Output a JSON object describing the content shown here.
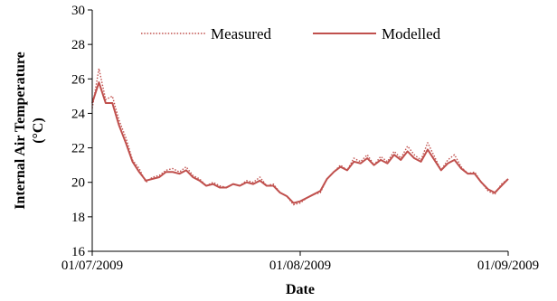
{
  "chart_data": {
    "type": "line",
    "title": "",
    "xlabel": "Date",
    "ylabel": "Internal Air Temperature",
    "ylabel_unit": "(°C)",
    "ylim": [
      16,
      30
    ],
    "yticks": [
      16,
      18,
      20,
      22,
      24,
      26,
      28,
      30
    ],
    "x_range": [
      "01/07/2009",
      "01/09/2009"
    ],
    "xticks": [
      "01/07/2009",
      "01/08/2009",
      "01/09/2009"
    ],
    "grid": false,
    "legend_position": "top",
    "series": [
      {
        "name": "Measured",
        "style": "dotted",
        "color": "#C0504D",
        "points": [
          [
            "01/07/2009",
            24.3
          ],
          [
            "02/07/2009",
            26.6
          ],
          [
            "03/07/2009",
            24.8
          ],
          [
            "04/07/2009",
            25.0
          ],
          [
            "05/07/2009",
            23.6
          ],
          [
            "06/07/2009",
            22.6
          ],
          [
            "07/07/2009",
            21.3
          ],
          [
            "08/07/2009",
            20.8
          ],
          [
            "09/07/2009",
            20.0
          ],
          [
            "10/07/2009",
            20.3
          ],
          [
            "11/07/2009",
            20.4
          ],
          [
            "12/07/2009",
            20.7
          ],
          [
            "13/07/2009",
            20.8
          ],
          [
            "14/07/2009",
            20.6
          ],
          [
            "15/07/2009",
            20.9
          ],
          [
            "16/07/2009",
            20.4
          ],
          [
            "17/07/2009",
            20.2
          ],
          [
            "18/07/2009",
            19.8
          ],
          [
            "19/07/2009",
            20.0
          ],
          [
            "20/07/2009",
            19.8
          ],
          [
            "21/07/2009",
            19.7
          ],
          [
            "22/07/2009",
            19.9
          ],
          [
            "23/07/2009",
            19.8
          ],
          [
            "24/07/2009",
            20.1
          ],
          [
            "25/07/2009",
            20.0
          ],
          [
            "26/07/2009",
            20.3
          ],
          [
            "27/07/2009",
            19.8
          ],
          [
            "28/07/2009",
            19.9
          ],
          [
            "29/07/2009",
            19.4
          ],
          [
            "30/07/2009",
            19.2
          ],
          [
            "31/07/2009",
            18.7
          ],
          [
            "01/08/2009",
            18.8
          ],
          [
            "02/08/2009",
            19.1
          ],
          [
            "03/08/2009",
            19.3
          ],
          [
            "04/08/2009",
            19.4
          ],
          [
            "05/08/2009",
            20.2
          ],
          [
            "06/08/2009",
            20.6
          ],
          [
            "07/08/2009",
            21.0
          ],
          [
            "08/08/2009",
            20.7
          ],
          [
            "09/08/2009",
            21.4
          ],
          [
            "10/08/2009",
            21.2
          ],
          [
            "11/08/2009",
            21.6
          ],
          [
            "12/08/2009",
            21.0
          ],
          [
            "13/08/2009",
            21.5
          ],
          [
            "14/08/2009",
            21.2
          ],
          [
            "15/08/2009",
            21.8
          ],
          [
            "16/08/2009",
            21.4
          ],
          [
            "17/08/2009",
            22.1
          ],
          [
            "18/08/2009",
            21.6
          ],
          [
            "19/08/2009",
            21.3
          ],
          [
            "20/08/2009",
            22.3
          ],
          [
            "21/08/2009",
            21.5
          ],
          [
            "22/08/2009",
            20.7
          ],
          [
            "23/08/2009",
            21.3
          ],
          [
            "24/08/2009",
            21.6
          ],
          [
            "25/08/2009",
            20.9
          ],
          [
            "26/08/2009",
            20.5
          ],
          [
            "27/08/2009",
            20.6
          ],
          [
            "28/08/2009",
            20.0
          ],
          [
            "29/08/2009",
            19.5
          ],
          [
            "30/08/2009",
            19.3
          ],
          [
            "31/08/2009",
            19.9
          ],
          [
            "01/09/2009",
            20.2
          ]
        ]
      },
      {
        "name": "Modelled",
        "style": "solid",
        "color": "#C0504D",
        "points": [
          [
            "01/07/2009",
            24.6
          ],
          [
            "02/07/2009",
            25.8
          ],
          [
            "03/07/2009",
            24.6
          ],
          [
            "04/07/2009",
            24.6
          ],
          [
            "05/07/2009",
            23.3
          ],
          [
            "06/07/2009",
            22.3
          ],
          [
            "07/07/2009",
            21.2
          ],
          [
            "08/07/2009",
            20.6
          ],
          [
            "09/07/2009",
            20.1
          ],
          [
            "10/07/2009",
            20.2
          ],
          [
            "11/07/2009",
            20.3
          ],
          [
            "12/07/2009",
            20.6
          ],
          [
            "13/07/2009",
            20.6
          ],
          [
            "14/07/2009",
            20.5
          ],
          [
            "15/07/2009",
            20.7
          ],
          [
            "16/07/2009",
            20.3
          ],
          [
            "17/07/2009",
            20.1
          ],
          [
            "18/07/2009",
            19.8
          ],
          [
            "19/07/2009",
            19.9
          ],
          [
            "20/07/2009",
            19.7
          ],
          [
            "21/07/2009",
            19.7
          ],
          [
            "22/07/2009",
            19.9
          ],
          [
            "23/07/2009",
            19.8
          ],
          [
            "24/07/2009",
            20.0
          ],
          [
            "25/07/2009",
            19.9
          ],
          [
            "26/07/2009",
            20.1
          ],
          [
            "27/07/2009",
            19.8
          ],
          [
            "28/07/2009",
            19.8
          ],
          [
            "29/07/2009",
            19.4
          ],
          [
            "30/07/2009",
            19.2
          ],
          [
            "31/07/2009",
            18.8
          ],
          [
            "01/08/2009",
            18.9
          ],
          [
            "02/08/2009",
            19.1
          ],
          [
            "03/08/2009",
            19.3
          ],
          [
            "04/08/2009",
            19.5
          ],
          [
            "05/08/2009",
            20.2
          ],
          [
            "06/08/2009",
            20.6
          ],
          [
            "07/08/2009",
            20.9
          ],
          [
            "08/08/2009",
            20.7
          ],
          [
            "09/08/2009",
            21.2
          ],
          [
            "10/08/2009",
            21.1
          ],
          [
            "11/08/2009",
            21.4
          ],
          [
            "12/08/2009",
            21.0
          ],
          [
            "13/08/2009",
            21.3
          ],
          [
            "14/08/2009",
            21.1
          ],
          [
            "15/08/2009",
            21.6
          ],
          [
            "16/08/2009",
            21.3
          ],
          [
            "17/08/2009",
            21.8
          ],
          [
            "18/08/2009",
            21.4
          ],
          [
            "19/08/2009",
            21.2
          ],
          [
            "20/08/2009",
            21.9
          ],
          [
            "21/08/2009",
            21.3
          ],
          [
            "22/08/2009",
            20.7
          ],
          [
            "23/08/2009",
            21.1
          ],
          [
            "24/08/2009",
            21.3
          ],
          [
            "25/08/2009",
            20.8
          ],
          [
            "26/08/2009",
            20.5
          ],
          [
            "27/08/2009",
            20.5
          ],
          [
            "28/08/2009",
            20.0
          ],
          [
            "29/08/2009",
            19.6
          ],
          [
            "30/08/2009",
            19.4
          ],
          [
            "31/08/2009",
            19.8
          ],
          [
            "01/09/2009",
            20.2
          ]
        ]
      }
    ]
  }
}
